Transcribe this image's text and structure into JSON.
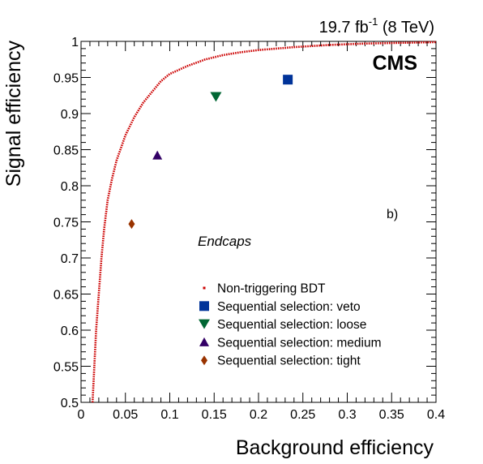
{
  "header": {
    "lumi_value": "19.7 fb",
    "lumi_exponent": "-1",
    "lumi_energy": " (8 TeV)",
    "experiment": "CMS"
  },
  "labels": {
    "panel": "b)",
    "region": "Endcaps"
  },
  "chart_data": {
    "type": "scatter",
    "xlabel": "Background efficiency",
    "ylabel": "Signal efficiency",
    "xlim": [
      0,
      0.4
    ],
    "ylim": [
      0.5,
      1.0
    ],
    "x_ticks": [
      "0",
      "0.05",
      "0.1",
      "0.15",
      "0.2",
      "0.25",
      "0.3",
      "0.35",
      "0.4"
    ],
    "y_ticks": [
      "0.5",
      "0.55",
      "0.6",
      "0.65",
      "0.7",
      "0.75",
      "0.8",
      "0.85",
      "0.9",
      "0.95",
      "1"
    ],
    "legend_position": "bottom-center",
    "series": [
      {
        "name": "Non-triggering BDT",
        "kind": "curve",
        "color": "#cc0000",
        "x": [
          0.013,
          0.015,
          0.017,
          0.02,
          0.023,
          0.026,
          0.03,
          0.035,
          0.04,
          0.05,
          0.06,
          0.07,
          0.08,
          0.09,
          0.1,
          0.12,
          0.14,
          0.16,
          0.18,
          0.2,
          0.24,
          0.28,
          0.32,
          0.36,
          0.4
        ],
        "y": [
          0.5,
          0.55,
          0.6,
          0.65,
          0.7,
          0.74,
          0.78,
          0.81,
          0.835,
          0.87,
          0.895,
          0.915,
          0.93,
          0.945,
          0.955,
          0.966,
          0.975,
          0.981,
          0.985,
          0.988,
          0.992,
          0.995,
          0.997,
          0.998,
          0.999
        ]
      },
      {
        "name": "Sequential selection: veto",
        "kind": "point",
        "marker": "square",
        "color": "#003399",
        "x": [
          0.233
        ],
        "y": [
          0.947
        ]
      },
      {
        "name": "Sequential selection: loose",
        "kind": "point",
        "marker": "triangle-down",
        "color": "#006633",
        "x": [
          0.152
        ],
        "y": [
          0.923
        ]
      },
      {
        "name": "Sequential selection: medium",
        "kind": "point",
        "marker": "triangle-up",
        "color": "#330066",
        "x": [
          0.086
        ],
        "y": [
          0.842
        ]
      },
      {
        "name": "Sequential selection: tight",
        "kind": "point",
        "marker": "diamond",
        "color": "#993300",
        "x": [
          0.057
        ],
        "y": [
          0.747
        ]
      }
    ]
  }
}
